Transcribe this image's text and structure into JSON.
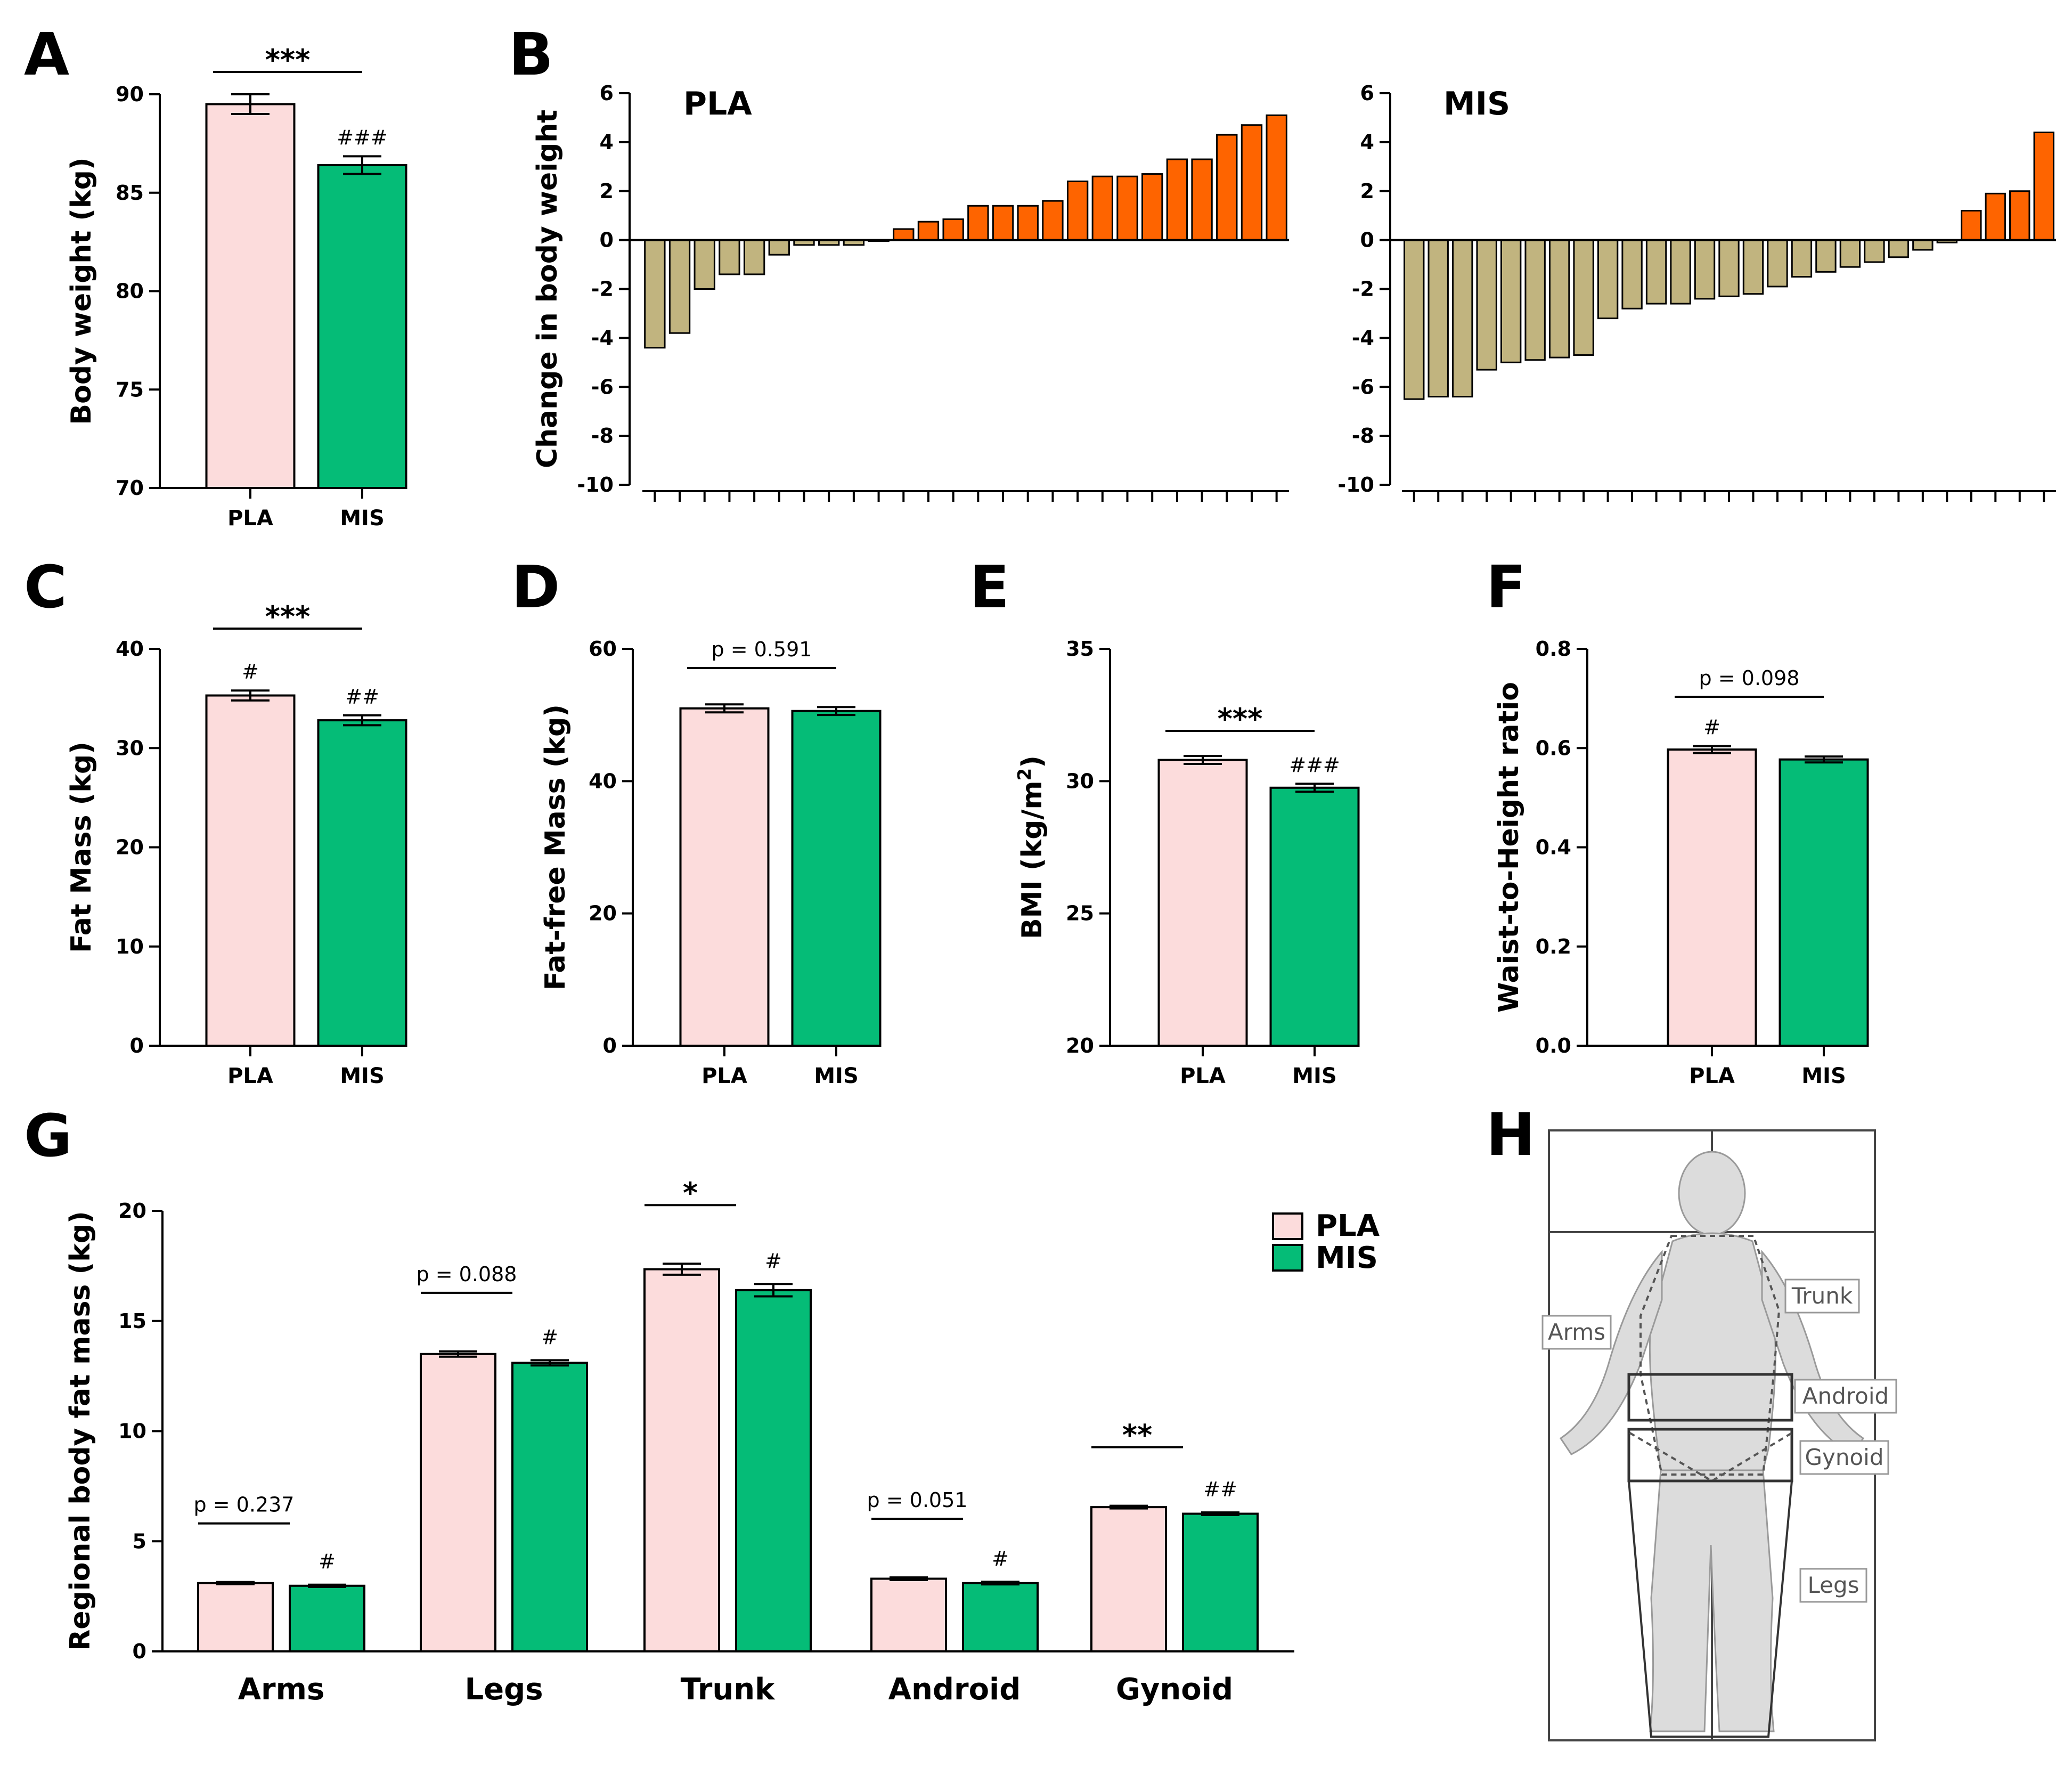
{
  "colors": {
    "pla": "#fcdcdc",
    "mis": "#05bc77",
    "neg": "#c1b47f",
    "pos": "#fe6400",
    "axis": "#000000"
  },
  "chart_data": [
    {
      "id": "A",
      "type": "bar",
      "panel_label": "A",
      "ylabel": "Body weight (kg)",
      "ylim": [
        70,
        90
      ],
      "yticks": [
        70,
        75,
        80,
        85,
        90
      ],
      "categories": [
        "PLA",
        "MIS"
      ],
      "values": [
        89.5,
        86.4
      ],
      "errors": [
        0.5,
        0.45
      ],
      "bar_annotations": [
        "",
        "###"
      ],
      "comparison": {
        "text": "***",
        "kind": "star"
      }
    },
    {
      "id": "B-PLA",
      "type": "bar",
      "panel_label": "B",
      "group_label": "PLA",
      "ylabel": "Change in body weight",
      "ylim": [
        -10,
        6
      ],
      "yticks": [
        -10,
        -8,
        -6,
        -4,
        -2,
        0,
        2,
        4,
        6
      ],
      "values": [
        -4.4,
        -3.8,
        -2.0,
        -1.4,
        -1.4,
        -0.6,
        -0.2,
        -0.2,
        -0.2,
        0.0,
        0.45,
        0.75,
        0.85,
        1.4,
        1.4,
        1.4,
        1.6,
        2.4,
        2.6,
        2.6,
        2.7,
        3.3,
        3.3,
        4.3,
        4.7,
        5.1
      ]
    },
    {
      "id": "B-MIS",
      "type": "bar",
      "group_label": "MIS",
      "ylabel": "",
      "ylim": [
        -10,
        6
      ],
      "yticks": [
        -10,
        -8,
        -6,
        -4,
        -2,
        0,
        2,
        4,
        6
      ],
      "values": [
        -6.5,
        -6.4,
        -6.4,
        -5.3,
        -5.0,
        -4.9,
        -4.8,
        -4.7,
        -3.2,
        -2.8,
        -2.6,
        -2.6,
        -2.4,
        -2.3,
        -2.2,
        -1.9,
        -1.5,
        -1.3,
        -1.1,
        -0.9,
        -0.7,
        -0.4,
        -0.1,
        1.2,
        1.9,
        2.0,
        4.4
      ]
    },
    {
      "id": "C",
      "type": "bar",
      "panel_label": "C",
      "ylabel": "Fat Mass (kg)",
      "ylim": [
        0,
        40
      ],
      "yticks": [
        0,
        10,
        20,
        30,
        40
      ],
      "categories": [
        "PLA",
        "MIS"
      ],
      "values": [
        35.3,
        32.8
      ],
      "errors": [
        0.5,
        0.5
      ],
      "bar_annotations": [
        "#",
        "##"
      ],
      "comparison": {
        "text": "***",
        "kind": "star"
      }
    },
    {
      "id": "D",
      "type": "bar",
      "panel_label": "D",
      "ylabel": "Fat-free Mass (kg)",
      "ylim": [
        0,
        60
      ],
      "yticks": [
        0,
        20,
        40,
        60
      ],
      "categories": [
        "PLA",
        "MIS"
      ],
      "values": [
        51.0,
        50.6
      ],
      "errors": [
        0.6,
        0.6
      ],
      "bar_annotations": [
        "",
        ""
      ],
      "comparison": {
        "text": "p = 0.591",
        "kind": "p"
      }
    },
    {
      "id": "E",
      "type": "bar",
      "panel_label": "E",
      "ylabel": "BMI (kg/m",
      "ylabel_sup": "2",
      "ylabel_end": ")",
      "ylim": [
        20,
        35
      ],
      "yticks": [
        20,
        25,
        30,
        35
      ],
      "categories": [
        "PLA",
        "MIS"
      ],
      "values": [
        30.8,
        29.75
      ],
      "errors": [
        0.15,
        0.15
      ],
      "bar_annotations": [
        "",
        "###"
      ],
      "comparison": {
        "text": "***",
        "kind": "star"
      }
    },
    {
      "id": "F",
      "type": "bar",
      "panel_label": "F",
      "ylabel": "Waist-to-Height ratio",
      "ylim": [
        0,
        0.8
      ],
      "yticks": [
        0.0,
        0.2,
        0.4,
        0.6,
        0.8
      ],
      "categories": [
        "PLA",
        "MIS"
      ],
      "values": [
        0.597,
        0.577
      ],
      "errors": [
        0.007,
        0.006
      ],
      "bar_annotations": [
        "#",
        ""
      ],
      "comparison": {
        "text": "p = 0.098",
        "kind": "p"
      }
    },
    {
      "id": "G",
      "type": "bar",
      "panel_label": "G",
      "ylabel": "Regional body fat mass (kg)",
      "ylim": [
        0,
        20
      ],
      "yticks": [
        0,
        5,
        10,
        15,
        20
      ],
      "categories": [
        "Arms",
        "Legs",
        "Trunk",
        "Android",
        "Gynoid"
      ],
      "series": [
        {
          "name": "PLA",
          "values": [
            3.1,
            13.5,
            17.35,
            3.3,
            6.55
          ],
          "errors": [
            0.05,
            0.12,
            0.25,
            0.06,
            0.06
          ]
        },
        {
          "name": "MIS",
          "values": [
            2.98,
            13.1,
            16.4,
            3.1,
            6.25
          ],
          "errors": [
            0.05,
            0.12,
            0.28,
            0.06,
            0.06
          ]
        }
      ],
      "annotations_mis": [
        "#",
        "#",
        "#",
        "#",
        "##"
      ],
      "comparisons": [
        {
          "text": "p = 0.237",
          "kind": "p"
        },
        {
          "text": "p = 0.088",
          "kind": "p"
        },
        {
          "text": "*",
          "kind": "star"
        },
        {
          "text": "p = 0.051",
          "kind": "p"
        },
        {
          "text": "**",
          "kind": "star"
        }
      ],
      "legend": [
        "PLA",
        "MIS"
      ]
    }
  ],
  "panel_h": {
    "panel_label": "H",
    "region_labels": [
      "Trunk",
      "Arms",
      "Android",
      "Gynoid",
      "Legs"
    ]
  }
}
